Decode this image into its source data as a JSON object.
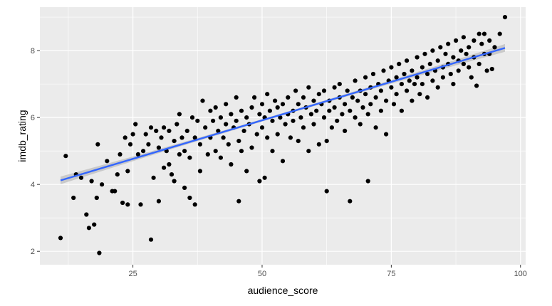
{
  "chart_data": {
    "type": "scatter",
    "xlabel": "audience_score",
    "ylabel": "imdb_rating",
    "xlim": [
      7,
      101
    ],
    "ylim": [
      1.6,
      9.3
    ],
    "x_ticks": [
      25,
      50,
      75,
      100
    ],
    "y_ticks": [
      2,
      4,
      6,
      8
    ],
    "x_tick_labels": [
      "25",
      "50",
      "75",
      "100"
    ],
    "y_tick_labels": [
      "2",
      "4",
      "6",
      "8"
    ],
    "grid": true,
    "legend": "none",
    "colors": {
      "panel": "#ebebeb",
      "grid": "#ffffff",
      "points": "#000000",
      "fit_line": "#3366ff",
      "confidence_band": "#bdbdbd"
    },
    "fit": {
      "method": "linear",
      "x": [
        11,
        97
      ],
      "y": [
        4.12,
        8.08
      ],
      "se": true
    },
    "points": [
      [
        11,
        2.4
      ],
      [
        12,
        4.85
      ],
      [
        13.5,
        3.6
      ],
      [
        14,
        4.3
      ],
      [
        15,
        4.2
      ],
      [
        16,
        3.1
      ],
      [
        16.5,
        2.7
      ],
      [
        17,
        4.1
      ],
      [
        17.5,
        2.8
      ],
      [
        18,
        3.6
      ],
      [
        18.2,
        5.2
      ],
      [
        18.5,
        1.95
      ],
      [
        19,
        4.0
      ],
      [
        20,
        4.7
      ],
      [
        21,
        3.8
      ],
      [
        21.5,
        3.8
      ],
      [
        22,
        4.3
      ],
      [
        22.5,
        4.9
      ],
      [
        23,
        3.45
      ],
      [
        23.5,
        5.4
      ],
      [
        24,
        3.4
      ],
      [
        24,
        4.4
      ],
      [
        24.5,
        5.2
      ],
      [
        25,
        5.5
      ],
      [
        25.5,
        5.8
      ],
      [
        26,
        4.9
      ],
      [
        26.5,
        3.4
      ],
      [
        27,
        5.0
      ],
      [
        27.5,
        5.5
      ],
      [
        28,
        5.2
      ],
      [
        28.5,
        5.7
      ],
      [
        29,
        4.2
      ],
      [
        28.5,
        2.35
      ],
      [
        29.5,
        5.6
      ],
      [
        30,
        3.5
      ],
      [
        30,
        5.1
      ],
      [
        30.5,
        5.4
      ],
      [
        31,
        4.5
      ],
      [
        31,
        5.7
      ],
      [
        31.5,
        5.0
      ],
      [
        32,
        4.6
      ],
      [
        32,
        5.6
      ],
      [
        32.5,
        4.3
      ],
      [
        33,
        4.1
      ],
      [
        33,
        5.3
      ],
      [
        33.5,
        5.8
      ],
      [
        34,
        4.9
      ],
      [
        34,
        6.1
      ],
      [
        34.5,
        5.4
      ],
      [
        35,
        3.9
      ],
      [
        35,
        5.0
      ],
      [
        35.5,
        5.6
      ],
      [
        36,
        3.6
      ],
      [
        36,
        4.8
      ],
      [
        36.5,
        6.0
      ],
      [
        37,
        3.4
      ],
      [
        37,
        5.4
      ],
      [
        37.5,
        5.9
      ],
      [
        38,
        4.4
      ],
      [
        38,
        5.2
      ],
      [
        38.5,
        6.5
      ],
      [
        39,
        5.7
      ],
      [
        39.5,
        4.9
      ],
      [
        40,
        6.2
      ],
      [
        40,
        5.4
      ],
      [
        40.5,
        5.9
      ],
      [
        41,
        5.0
      ],
      [
        41,
        6.3
      ],
      [
        41.5,
        5.6
      ],
      [
        42,
        4.8
      ],
      [
        42,
        6.0
      ],
      [
        42.5,
        5.4
      ],
      [
        43,
        5.8
      ],
      [
        43,
        6.4
      ],
      [
        43.5,
        5.2
      ],
      [
        44,
        4.6
      ],
      [
        44,
        6.1
      ],
      [
        44.5,
        5.7
      ],
      [
        45,
        5.9
      ],
      [
        45,
        6.6
      ],
      [
        45.5,
        3.5
      ],
      [
        45.5,
        5.3
      ],
      [
        46,
        6.2
      ],
      [
        46,
        5.0
      ],
      [
        46.5,
        5.6
      ],
      [
        47,
        4.4
      ],
      [
        47,
        6.0
      ],
      [
        47.5,
        5.8
      ],
      [
        48,
        6.3
      ],
      [
        48,
        5.1
      ],
      [
        48.5,
        6.6
      ],
      [
        49,
        5.5
      ],
      [
        49.5,
        4.1
      ],
      [
        49.5,
        6.1
      ],
      [
        50,
        6.4
      ],
      [
        50,
        5.7
      ],
      [
        50.5,
        4.2
      ],
      [
        50.5,
        6.0
      ],
      [
        51,
        5.4
      ],
      [
        51,
        6.7
      ],
      [
        51.5,
        6.2
      ],
      [
        52,
        5.0
      ],
      [
        52,
        5.9
      ],
      [
        52.5,
        6.5
      ],
      [
        53,
        6.3
      ],
      [
        53,
        5.5
      ],
      [
        53.5,
        6.0
      ],
      [
        54,
        4.7
      ],
      [
        54,
        6.4
      ],
      [
        54.5,
        5.8
      ],
      [
        55,
        6.1
      ],
      [
        55,
        6.6
      ],
      [
        55.5,
        5.4
      ],
      [
        56,
        6.2
      ],
      [
        56,
        5.9
      ],
      [
        56.5,
        6.8
      ],
      [
        57,
        6.4
      ],
      [
        57,
        5.3
      ],
      [
        57.5,
        6.0
      ],
      [
        58,
        6.6
      ],
      [
        58,
        5.7
      ],
      [
        58.5,
        6.3
      ],
      [
        59,
        5.0
      ],
      [
        59,
        6.9
      ],
      [
        59.5,
        6.1
      ],
      [
        60,
        6.5
      ],
      [
        60,
        5.8
      ],
      [
        60.5,
        6.2
      ],
      [
        61,
        6.7
      ],
      [
        61,
        5.2
      ],
      [
        61.5,
        6.4
      ],
      [
        62,
        6.0
      ],
      [
        62,
        6.8
      ],
      [
        62.5,
        3.8
      ],
      [
        62.5,
        5.3
      ],
      [
        63,
        6.5
      ],
      [
        63,
        6.2
      ],
      [
        63.5,
        5.7
      ],
      [
        64,
        6.9
      ],
      [
        64,
        6.3
      ],
      [
        64.5,
        5.9
      ],
      [
        65,
        6.6
      ],
      [
        65,
        7.0
      ],
      [
        65.5,
        6.1
      ],
      [
        66,
        6.4
      ],
      [
        66,
        5.6
      ],
      [
        66.5,
        6.8
      ],
      [
        67,
        6.2
      ],
      [
        67,
        3.5
      ],
      [
        67.5,
        6.6
      ],
      [
        68,
        7.1
      ],
      [
        68,
        6.0
      ],
      [
        68.5,
        6.5
      ],
      [
        69,
        6.8
      ],
      [
        69,
        5.8
      ],
      [
        69.5,
        6.3
      ],
      [
        70,
        7.2
      ],
      [
        70,
        6.7
      ],
      [
        70.5,
        4.1
      ],
      [
        70.5,
        6.1
      ],
      [
        71,
        6.9
      ],
      [
        71,
        6.4
      ],
      [
        71.5,
        7.3
      ],
      [
        72,
        6.6
      ],
      [
        72,
        5.7
      ],
      [
        72.5,
        7.0
      ],
      [
        73,
        6.8
      ],
      [
        73,
        6.2
      ],
      [
        73.5,
        7.4
      ],
      [
        74,
        6.5
      ],
      [
        74,
        5.5
      ],
      [
        74.5,
        7.1
      ],
      [
        75,
        6.9
      ],
      [
        75,
        7.5
      ],
      [
        75.5,
        6.4
      ],
      [
        76,
        7.2
      ],
      [
        76,
        6.7
      ],
      [
        76.5,
        7.6
      ],
      [
        77,
        7.0
      ],
      [
        77,
        6.2
      ],
      [
        77.5,
        7.3
      ],
      [
        78,
        6.8
      ],
      [
        78,
        7.7
      ],
      [
        78.5,
        7.1
      ],
      [
        79,
        6.5
      ],
      [
        79,
        7.4
      ],
      [
        79.5,
        7.0
      ],
      [
        80,
        7.8
      ],
      [
        80,
        7.2
      ],
      [
        80.5,
        6.7
      ],
      [
        81,
        7.5
      ],
      [
        81,
        7.0
      ],
      [
        81.5,
        7.9
      ],
      [
        82,
        7.3
      ],
      [
        82,
        6.6
      ],
      [
        82.5,
        7.6
      ],
      [
        83,
        7.1
      ],
      [
        83,
        8.0
      ],
      [
        83.5,
        7.4
      ],
      [
        84,
        7.7
      ],
      [
        84,
        6.9
      ],
      [
        84.5,
        8.1
      ],
      [
        85,
        7.5
      ],
      [
        85,
        7.2
      ],
      [
        85.5,
        7.9
      ],
      [
        86,
        7.6
      ],
      [
        86,
        8.2
      ],
      [
        86.5,
        7.3
      ],
      [
        87,
        7.8
      ],
      [
        87,
        7.0
      ],
      [
        87.5,
        8.3
      ],
      [
        88,
        7.7
      ],
      [
        88,
        7.4
      ],
      [
        88.5,
        8.0
      ],
      [
        89,
        7.6
      ],
      [
        89,
        8.4
      ],
      [
        89.5,
        7.9
      ],
      [
        90,
        7.5
      ],
      [
        90,
        8.1
      ],
      [
        90.5,
        7.2
      ],
      [
        91,
        8.3
      ],
      [
        91,
        7.8
      ],
      [
        91.5,
        6.95
      ],
      [
        92,
        8.5
      ],
      [
        92,
        7.6
      ],
      [
        92.5,
        8.2
      ],
      [
        93,
        7.9
      ],
      [
        93,
        8.5
      ],
      [
        93.5,
        7.4
      ],
      [
        94,
        8.3
      ],
      [
        94,
        7.9
      ],
      [
        94.5,
        7.45
      ],
      [
        95,
        8.1
      ],
      [
        96,
        8.5
      ],
      [
        97,
        9.0
      ]
    ]
  }
}
